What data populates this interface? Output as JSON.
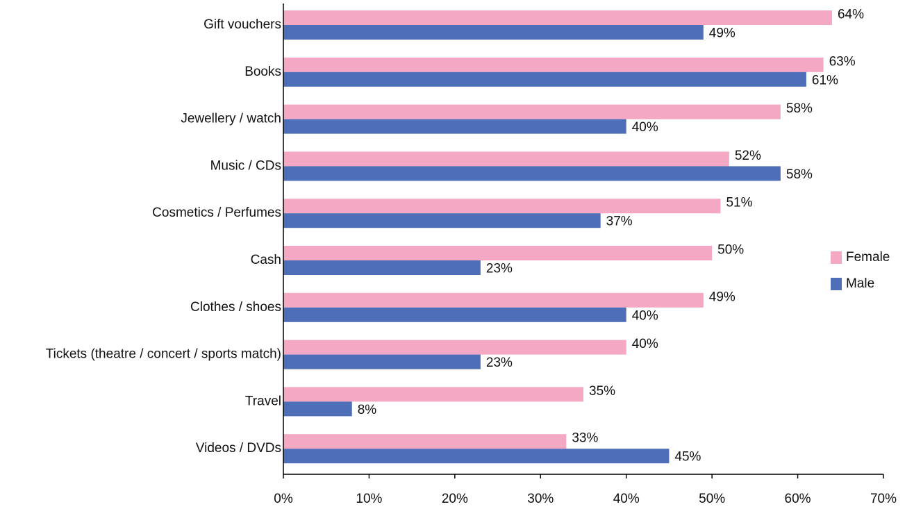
{
  "chart_data": {
    "type": "bar",
    "orientation": "horizontal",
    "categories": [
      "Gift vouchers",
      "Books",
      "Jewellery / watch",
      "Music / CDs",
      "Cosmetics / Perfumes",
      "Cash",
      "Clothes / shoes",
      "Tickets (theatre / concert / sports match)",
      "Travel",
      "Videos / DVDs"
    ],
    "series": [
      {
        "name": "Female",
        "color": "#f4a8c4",
        "values": [
          64,
          63,
          58,
          52,
          51,
          50,
          49,
          40,
          35,
          33
        ],
        "value_labels": [
          "64%",
          "63%",
          "58%",
          "52%",
          "51%",
          "50%",
          "49%",
          "40%",
          "35%",
          "33%"
        ]
      },
      {
        "name": "Male",
        "color": "#4e6eb8",
        "values": [
          49,
          61,
          40,
          58,
          37,
          23,
          40,
          23,
          8,
          45
        ],
        "value_labels": [
          "49%",
          "61%",
          "40%",
          "58%",
          "37%",
          "23%",
          "40%",
          "23%",
          "8%",
          "45%"
        ]
      }
    ],
    "xlim": [
      0,
      70
    ],
    "xticks": [
      {
        "value": 0,
        "label": "0%"
      },
      {
        "value": 10,
        "label": "10%"
      },
      {
        "value": 20,
        "label": "20%"
      },
      {
        "value": 30,
        "label": "30%"
      },
      {
        "value": 40,
        "label": "40%"
      },
      {
        "value": 50,
        "label": "50%"
      },
      {
        "value": 60,
        "label": "60%"
      },
      {
        "value": 70,
        "label": "70%"
      }
    ],
    "legend": "right"
  }
}
